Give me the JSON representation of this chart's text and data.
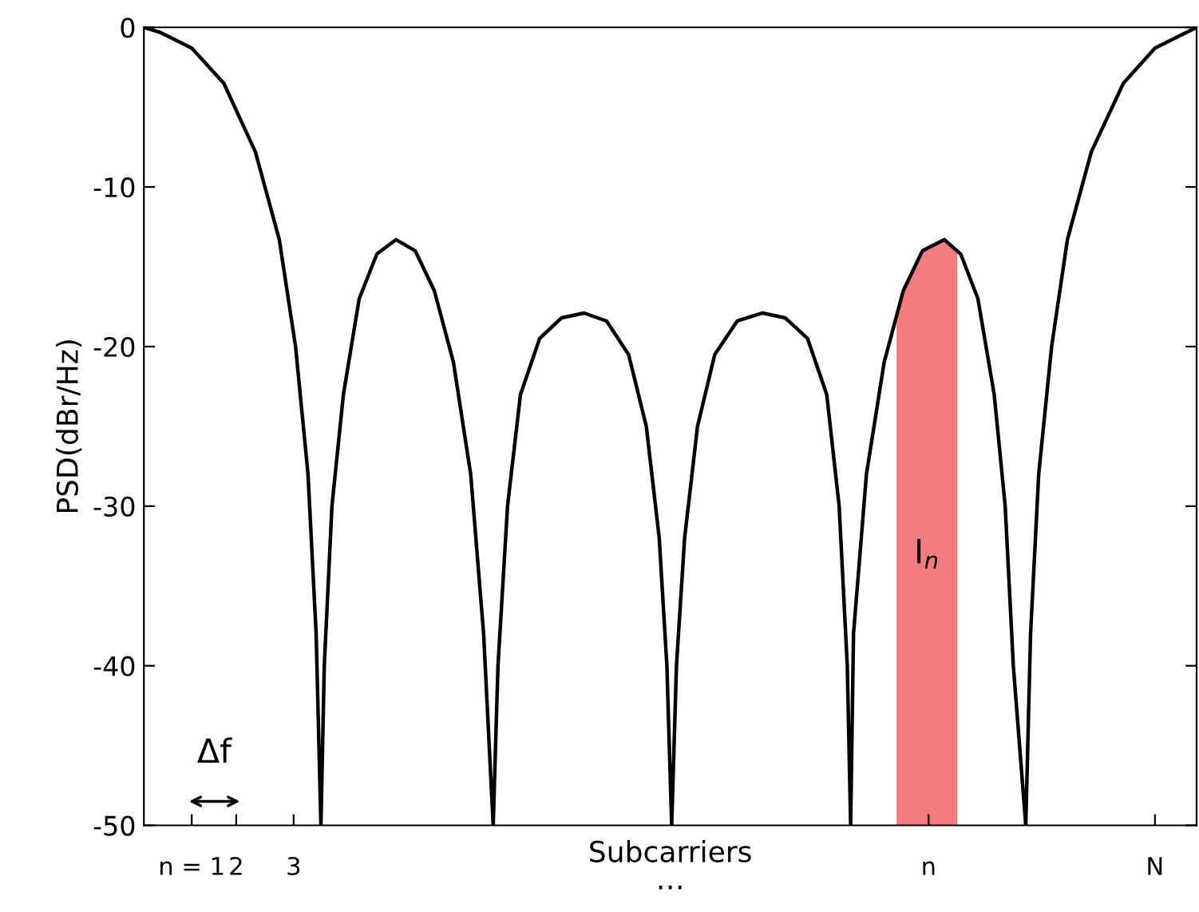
{
  "chart_data": {
    "type": "line",
    "ylabel": "PSD(dBr/Hz)",
    "xlabel": "Subcarriers",
    "xlim": [
      0,
      22
    ],
    "ylim": [
      -50,
      0
    ],
    "yticks": [
      0,
      -10,
      -20,
      -30,
      -40,
      -50
    ],
    "xticks": [
      {
        "value": 1.0,
        "label": "n = 1"
      },
      {
        "value": 1.93,
        "label": "2"
      },
      {
        "value": 3.13,
        "label": "3"
      },
      {
        "value": 16.4,
        "label": "n"
      },
      {
        "value": 21.13,
        "label": "N"
      }
    ],
    "grid": false,
    "legend": false,
    "annotations": [
      "Δf",
      "…"
    ],
    "bands": [
      {
        "axis": "x",
        "from": 15.73,
        "to": 17.0,
        "label": "I$_{n}$",
        "color": "#f47c7c"
      }
    ],
    "series": [
      {
        "type": "line",
        "color": "#000000",
        "x": [
          0,
          0.33,
          1.0,
          1.67,
          2.33,
          2.83,
          3.17,
          3.43,
          3.6,
          3.7,
          3.77,
          3.93,
          4.17,
          4.5,
          4.87,
          5.27,
          5.67,
          6.07,
          6.47,
          6.83,
          7.1,
          7.3,
          7.4,
          7.6,
          7.87,
          8.27,
          8.73,
          9.2,
          9.67,
          10.13,
          10.5,
          10.77,
          10.93,
          11.03,
          11.13,
          11.3,
          11.57,
          11.93,
          12.4,
          12.93,
          13.4,
          13.87,
          14.27,
          14.53,
          14.7,
          14.77,
          14.83,
          15.1,
          15.47,
          15.87,
          16.27,
          16.73,
          17.07,
          17.43,
          17.77,
          18.0,
          18.17,
          18.43,
          18.53,
          18.7,
          18.97,
          19.3,
          19.8,
          20.47,
          21.13,
          21.8,
          22.0
        ],
        "values": [
          0,
          -0.3,
          -1.3,
          -3.5,
          -7.8,
          -13.3,
          -20,
          -28,
          -38,
          -50,
          -40,
          -30,
          -23,
          -17,
          -14.2,
          -13.3,
          -14,
          -16.5,
          -21,
          -28,
          -38,
          -50,
          -40,
          -30,
          -23,
          -19.5,
          -18.2,
          -17.9,
          -18.4,
          -20.5,
          -25,
          -32,
          -40,
          -50,
          -40,
          -32,
          -25,
          -20.5,
          -18.4,
          -17.9,
          -18.2,
          -19.5,
          -23,
          -30,
          -40,
          -50,
          -38,
          -28,
          -21,
          -16.5,
          -14,
          -13.3,
          -14.2,
          -17,
          -23,
          -30,
          -40,
          -50,
          -38,
          -28,
          -20,
          -13.3,
          -7.8,
          -3.5,
          -1.3,
          -0.3,
          0
        ]
      }
    ]
  }
}
